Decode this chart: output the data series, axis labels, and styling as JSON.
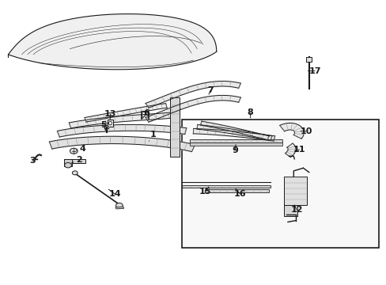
{
  "bg_color": "#ffffff",
  "line_color": "#1a1a1a",
  "label_positions": {
    "1": [
      0.385,
      0.495,
      0.345,
      0.465
    ],
    "2": [
      0.23,
      0.58,
      0.23,
      0.555
    ],
    "3": [
      0.095,
      0.59,
      0.11,
      0.575
    ],
    "4": [
      0.22,
      0.535,
      0.21,
      0.525
    ],
    "5": [
      0.27,
      0.43,
      0.27,
      0.455
    ],
    "6": [
      0.38,
      0.39,
      0.365,
      0.415
    ],
    "7": [
      0.53,
      0.325,
      0.51,
      0.34
    ],
    "8": [
      0.65,
      0.385,
      0.65,
      0.4
    ],
    "9": [
      0.65,
      0.57,
      0.65,
      0.555
    ],
    "10": [
      0.82,
      0.52,
      0.8,
      0.52
    ],
    "11": [
      0.81,
      0.62,
      0.795,
      0.62
    ],
    "12": [
      0.79,
      0.755,
      0.79,
      0.735
    ],
    "13": [
      0.285,
      0.395,
      0.285,
      0.415
    ],
    "14": [
      0.34,
      0.68,
      0.31,
      0.66
    ],
    "15": [
      0.575,
      0.71,
      0.575,
      0.7
    ],
    "16": [
      0.64,
      0.7,
      0.625,
      0.693
    ],
    "17": [
      0.83,
      0.28,
      0.815,
      0.28
    ]
  }
}
